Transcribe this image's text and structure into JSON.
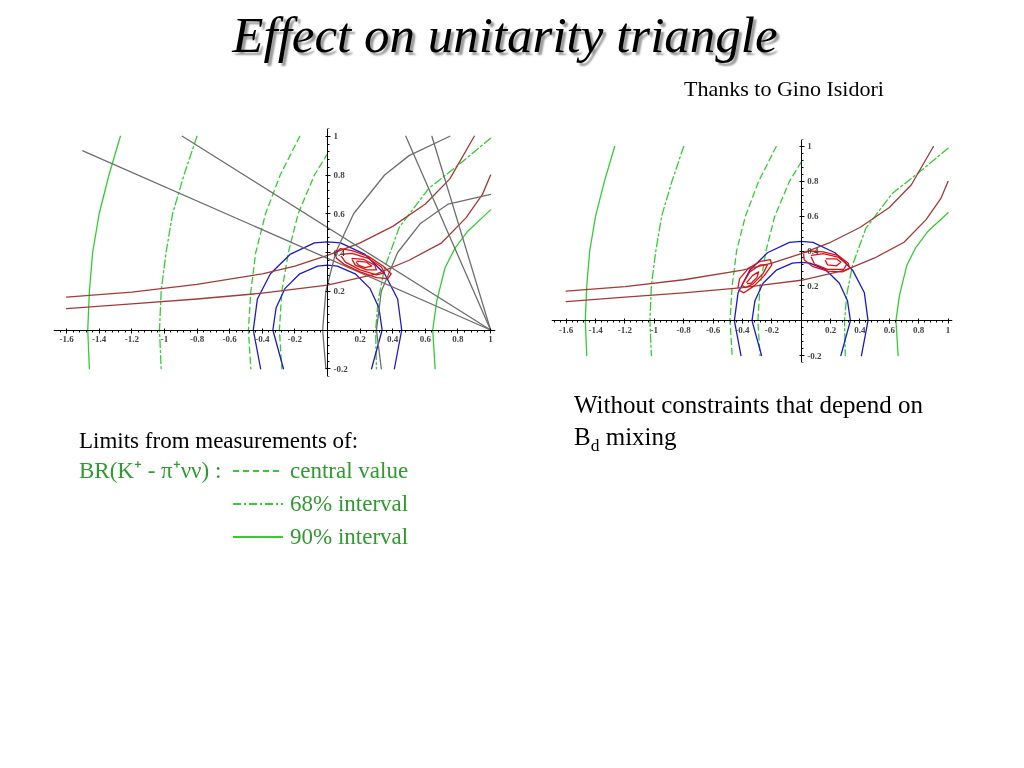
{
  "chart_data": [
    {
      "type": "line",
      "title": "Effect on unitarity triangle",
      "annotations": [
        "Limits from measurements of:"
      ],
      "legend": "bottom",
      "legend_title": "BR(K⁺ - π⁺νν) :",
      "xlim": [
        -1.68,
        1.03
      ],
      "ylim": [
        -0.24,
        1.04
      ],
      "xticks": [
        -1.6,
        -1.4,
        -1.2,
        -1,
        -0.8,
        -0.6,
        -0.4,
        -0.2,
        0.2,
        0.4,
        0.6,
        0.8,
        1
      ],
      "yticks": [
        -0.2,
        0.2,
        0.4,
        0.6,
        0.8,
        1
      ],
      "series": [
        {
          "name": "central value",
          "color": "#33cc33",
          "line_style": "dashed",
          "x": [
            -0.17,
            -0.29,
            -0.38,
            -0.44,
            -0.47,
            -0.485,
            -0.47
          ],
          "values": [
            1,
            0.8,
            0.6,
            0.4,
            0.2,
            0,
            -0.2
          ]
        },
        {
          "color": "#33cc33",
          "line_style": "dashed",
          "x": [
            0,
            -0.08,
            -0.18,
            -0.24,
            -0.28,
            -0.295,
            -0.28
          ],
          "values": [
            0.91,
            0.8,
            0.6,
            0.4,
            0.2,
            0,
            -0.2
          ]
        },
        {
          "name": "68% interval",
          "color": "#33cc33",
          "line_style": "dashdot",
          "x": [
            -0.8,
            -0.88,
            -0.95,
            -0.99,
            -1.02,
            -1.03,
            -1.02
          ],
          "values": [
            1,
            0.8,
            0.6,
            0.4,
            0.2,
            0,
            -0.2
          ]
        },
        {
          "color": "#33cc33",
          "line_style": "dashdot",
          "x": [
            1,
            0.8,
            0.62,
            0.44,
            0.35,
            0.31,
            0.295,
            0.3
          ],
          "values": [
            0.99,
            0.85,
            0.73,
            0.53,
            0.32,
            0.15,
            0,
            -0.2
          ]
        },
        {
          "name": "90% interval",
          "color": "#33cc33",
          "x": [
            -1.27,
            -1.34,
            -1.4,
            -1.44,
            -1.46,
            -1.47,
            -1.46
          ],
          "values": [
            1,
            0.8,
            0.6,
            0.4,
            0.2,
            0,
            -0.2
          ]
        },
        {
          "color": "#33cc33",
          "x": [
            1,
            0.86,
            0.78,
            0.72,
            0.67,
            0.645,
            0.66
          ],
          "values": [
            0.62,
            0.51,
            0.42,
            0.32,
            0.15,
            0,
            -0.2
          ]
        },
        {
          "color": "#1a1acc",
          "x": [
            0.41,
            0.455,
            0.43,
            0.35,
            0.23,
            0.08,
            0,
            -0.08,
            -0.23,
            -0.35,
            -0.43,
            -0.455,
            -0.41
          ],
          "values": [
            -0.2,
            0,
            0.16,
            0.29,
            0.39,
            0.45,
            0.455,
            0.45,
            0.39,
            0.29,
            0.16,
            0,
            -0.2
          ]
        },
        {
          "color": "#1a1acc",
          "x": [
            0.27,
            0.335,
            0.315,
            0.26,
            0.17,
            0.06,
            0,
            -0.06,
            -0.17,
            -0.26,
            -0.315,
            -0.335,
            -0.27
          ],
          "values": [
            -0.2,
            0,
            0.115,
            0.215,
            0.29,
            0.33,
            0.335,
            0.33,
            0.29,
            0.215,
            0.115,
            0,
            -0.2
          ]
        },
        {
          "color": "#a33a3a",
          "x": [
            -1.6,
            -1.2,
            -0.8,
            -0.4,
            -0.2,
            0,
            0.2,
            0.4,
            0.6,
            0.75,
            0.9
          ],
          "values": [
            0.17,
            0.195,
            0.235,
            0.29,
            0.33,
            0.385,
            0.45,
            0.535,
            0.65,
            0.78,
            1
          ]
        },
        {
          "color": "#a33a3a",
          "x": [
            -1.6,
            -1.2,
            -0.8,
            -0.4,
            0,
            0.3,
            0.5,
            0.7,
            0.85,
            0.95,
            1
          ],
          "values": [
            0.11,
            0.135,
            0.16,
            0.19,
            0.232,
            0.29,
            0.36,
            0.45,
            0.58,
            0.7,
            0.8
          ]
        },
        {
          "color": "#6e6e6e",
          "x": [
            -1.5,
            1
          ],
          "values": [
            0.925,
            0
          ]
        },
        {
          "color": "#6e6e6e",
          "x": [
            -0.89,
            1
          ],
          "values": [
            1,
            0
          ]
        },
        {
          "color": "#6e6e6e",
          "x": [
            0.48,
            1
          ],
          "values": [
            1,
            0
          ]
        },
        {
          "color": "#6e6e6e",
          "x": [
            0.64,
            1
          ],
          "values": [
            1,
            0
          ]
        },
        {
          "color": "#6e6e6e",
          "x": [
            -0.01,
            -0.03,
            -0.01,
            0.05,
            0.16,
            0.35,
            0.5,
            0.75
          ],
          "values": [
            -0.2,
            0,
            0.2,
            0.4,
            0.6,
            0.8,
            0.9,
            1
          ]
        },
        {
          "color": "#6e6e6e",
          "x": [
            0.33,
            0.3,
            0.33,
            0.43,
            0.57,
            0.74,
            1
          ],
          "values": [
            -0.2,
            0,
            0.2,
            0.4,
            0.55,
            0.65,
            0.7
          ]
        },
        {
          "color": "#e01010",
          "x": [
            0.05,
            0.08,
            0.15,
            0.25,
            0.34,
            0.39,
            0.37,
            0.3,
            0.2,
            0.1,
            0.055,
            0.048
          ],
          "values": [
            0.4,
            0.42,
            0.41,
            0.38,
            0.33,
            0.29,
            0.265,
            0.27,
            0.3,
            0.34,
            0.37,
            0.39
          ]
        },
        {
          "color": "#e01010",
          "x": [
            0.08,
            0.15,
            0.25,
            0.33,
            0.35,
            0.3,
            0.2,
            0.11,
            0.085
          ],
          "values": [
            0.39,
            0.395,
            0.37,
            0.325,
            0.295,
            0.285,
            0.31,
            0.35,
            0.38
          ]
        },
        {
          "color": "#e01010",
          "x": [
            0.15,
            0.22,
            0.29,
            0.3,
            0.24,
            0.17,
            0.152
          ],
          "values": [
            0.37,
            0.365,
            0.335,
            0.31,
            0.31,
            0.335,
            0.362
          ]
        },
        {
          "color": "#e01010",
          "x": [
            0.18,
            0.24,
            0.27,
            0.23,
            0.19,
            0.178
          ],
          "values": [
            0.355,
            0.35,
            0.33,
            0.322,
            0.335,
            0.348
          ]
        }
      ]
    },
    {
      "type": "line",
      "subtitle": "Thanks to Gino Isidori",
      "annotations": [
        "Without constraints that depend on B$_{d}$ mixing"
      ],
      "xlim": [
        -1.7,
        1.03
      ],
      "ylim": [
        -0.24,
        1.04
      ],
      "xticks": [
        -1.6,
        -1.4,
        -1.2,
        -1,
        -0.8,
        -0.6,
        -0.4,
        -0.2,
        0.2,
        0.4,
        0.6,
        0.8,
        1
      ],
      "yticks": [
        -0.2,
        0.2,
        0.4,
        0.6,
        0.8,
        1
      ],
      "series": [
        {
          "color": "#33cc33",
          "line_style": "dashed",
          "x": [
            -0.17,
            -0.29,
            -0.38,
            -0.44,
            -0.47,
            -0.485,
            -0.47
          ],
          "values": [
            1,
            0.8,
            0.6,
            0.4,
            0.2,
            0,
            -0.2
          ]
        },
        {
          "color": "#33cc33",
          "line_style": "dashed",
          "x": [
            0,
            -0.08,
            -0.18,
            -0.24,
            -0.28,
            -0.295,
            -0.28
          ],
          "values": [
            0.91,
            0.8,
            0.6,
            0.4,
            0.2,
            0,
            -0.2
          ]
        },
        {
          "color": "#33cc33",
          "line_style": "dashdot",
          "x": [
            -0.8,
            -0.88,
            -0.95,
            -0.99,
            -1.02,
            -1.03,
            -1.02
          ],
          "values": [
            1,
            0.8,
            0.6,
            0.4,
            0.2,
            0,
            -0.2
          ]
        },
        {
          "color": "#33cc33",
          "line_style": "dashdot",
          "x": [
            1,
            0.8,
            0.62,
            0.44,
            0.35,
            0.31,
            0.295,
            0.3
          ],
          "values": [
            0.99,
            0.85,
            0.73,
            0.53,
            0.32,
            0.15,
            0,
            -0.2
          ]
        },
        {
          "color": "#33cc33",
          "x": [
            -1.27,
            -1.34,
            -1.4,
            -1.44,
            -1.46,
            -1.47,
            -1.46
          ],
          "values": [
            1,
            0.8,
            0.6,
            0.4,
            0.2,
            0,
            -0.2
          ]
        },
        {
          "color": "#33cc33",
          "x": [
            1,
            0.86,
            0.78,
            0.72,
            0.67,
            0.645,
            0.66
          ],
          "values": [
            0.62,
            0.51,
            0.42,
            0.32,
            0.15,
            0,
            -0.2
          ]
        },
        {
          "color": "#1a1acc",
          "x": [
            0.41,
            0.455,
            0.43,
            0.35,
            0.23,
            0.08,
            0,
            -0.08,
            -0.23,
            -0.35,
            -0.43,
            -0.455,
            -0.41
          ],
          "values": [
            -0.2,
            0,
            0.16,
            0.29,
            0.39,
            0.45,
            0.455,
            0.45,
            0.39,
            0.29,
            0.16,
            0,
            -0.2
          ]
        },
        {
          "color": "#1a1acc",
          "x": [
            0.27,
            0.335,
            0.315,
            0.26,
            0.17,
            0.06,
            0,
            -0.06,
            -0.17,
            -0.26,
            -0.315,
            -0.335,
            -0.27
          ],
          "values": [
            -0.2,
            0,
            0.115,
            0.215,
            0.29,
            0.33,
            0.335,
            0.33,
            0.29,
            0.215,
            0.115,
            0,
            -0.2
          ]
        },
        {
          "color": "#a33a3a",
          "x": [
            -1.6,
            -1.2,
            -0.8,
            -0.4,
            -0.2,
            0,
            0.2,
            0.4,
            0.6,
            0.75,
            0.9
          ],
          "values": [
            0.17,
            0.195,
            0.235,
            0.29,
            0.33,
            0.385,
            0.45,
            0.535,
            0.65,
            0.78,
            1
          ]
        },
        {
          "color": "#a33a3a",
          "x": [
            -1.6,
            -1.2,
            -0.8,
            -0.4,
            0,
            0.3,
            0.5,
            0.7,
            0.85,
            0.95,
            1
          ],
          "values": [
            0.11,
            0.135,
            0.16,
            0.19,
            0.232,
            0.29,
            0.36,
            0.45,
            0.58,
            0.7,
            0.8
          ]
        },
        {
          "color": "#e01010",
          "x": [
            0.02,
            0.06,
            0.15,
            0.25,
            0.32,
            0.33,
            0.28,
            0.18,
            0.08,
            0.02,
            0.017
          ],
          "values": [
            0.39,
            0.4,
            0.395,
            0.375,
            0.33,
            0.3,
            0.28,
            0.285,
            0.31,
            0.35,
            0.38
          ]
        },
        {
          "color": "#e01010",
          "x": [
            0.07,
            0.15,
            0.25,
            0.31,
            0.29,
            0.18,
            0.09,
            0.068
          ],
          "values": [
            0.375,
            0.385,
            0.365,
            0.325,
            0.295,
            0.295,
            0.325,
            0.365
          ]
        },
        {
          "color": "#e01010",
          "x": [
            0.17,
            0.24,
            0.27,
            0.24,
            0.18,
            0.165
          ],
          "values": [
            0.355,
            0.355,
            0.335,
            0.315,
            0.32,
            0.345
          ]
        },
        {
          "color": "#e01010",
          "x": [
            -0.43,
            -0.42,
            -0.36,
            -0.28,
            -0.21,
            -0.2,
            -0.25,
            -0.32,
            -0.39,
            -0.425
          ],
          "values": [
            0.19,
            0.24,
            0.3,
            0.34,
            0.35,
            0.32,
            0.26,
            0.2,
            0.16,
            0.175
          ]
        },
        {
          "color": "#e01010",
          "x": [
            -0.4,
            -0.35,
            -0.28,
            -0.23,
            -0.26,
            -0.33,
            -0.38,
            -0.398
          ],
          "values": [
            0.21,
            0.28,
            0.32,
            0.32,
            0.27,
            0.21,
            0.19,
            0.2
          ]
        },
        {
          "color": "#e01010",
          "x": [
            -0.37,
            -0.33,
            -0.29,
            -0.3,
            -0.34,
            -0.365
          ],
          "values": [
            0.22,
            0.26,
            0.28,
            0.25,
            0.215,
            0.213
          ]
        }
      ]
    }
  ]
}
